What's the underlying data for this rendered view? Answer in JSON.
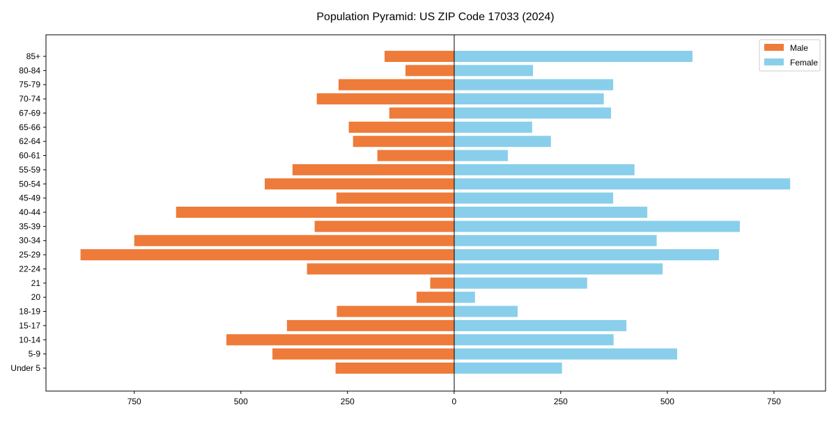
{
  "chart_data": {
    "type": "bar",
    "orientation": "horizontal",
    "title": "Population Pyramid: US ZIP Code 17033 (2024)",
    "xlabel": "",
    "ylabel": "",
    "xlim": [
      -957,
      871
    ],
    "xticks": [
      -750,
      -500,
      -250,
      0,
      250,
      500,
      750
    ],
    "xtick_labels": [
      "750",
      "500",
      "250",
      "0",
      "250",
      "500",
      "750"
    ],
    "grid": false,
    "legend_placement": "top-right",
    "categories": [
      "Under 5",
      "5-9",
      "10-14",
      "15-17",
      "18-19",
      "20",
      "21",
      "22-24",
      "25-29",
      "30-34",
      "35-39",
      "40-44",
      "45-49",
      "50-54",
      "55-59",
      "60-61",
      "62-64",
      "65-66",
      "67-69",
      "70-74",
      "75-79",
      "80-84",
      "85+"
    ],
    "series": [
      {
        "name": "Male",
        "color": "#ee7b3a",
        "values": [
          278,
          426,
          534,
          392,
          275,
          88,
          56,
          345,
          876,
          750,
          327,
          652,
          276,
          444,
          379,
          180,
          237,
          247,
          152,
          322,
          271,
          114,
          163
        ]
      },
      {
        "name": "Female",
        "color": "#89cfeb",
        "values": [
          253,
          523,
          374,
          404,
          149,
          49,
          312,
          489,
          621,
          475,
          670,
          453,
          373,
          788,
          423,
          126,
          227,
          183,
          368,
          351,
          373,
          185,
          559
        ]
      }
    ]
  }
}
